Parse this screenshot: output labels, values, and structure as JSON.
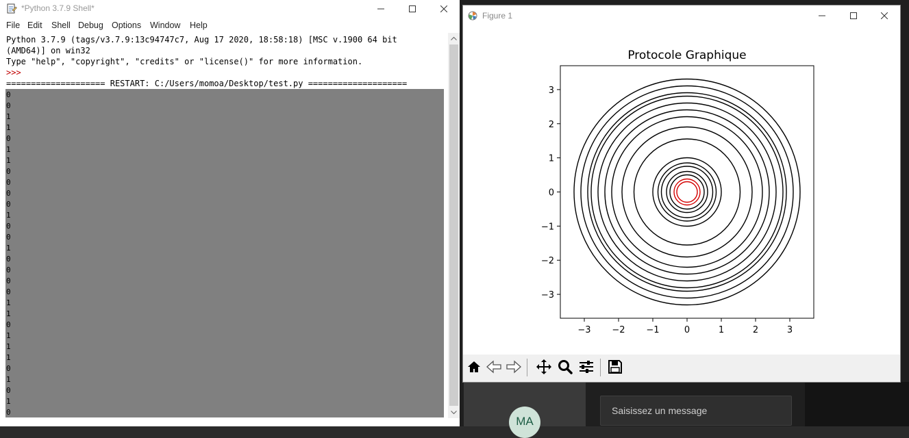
{
  "idle": {
    "title": "*Python 3.7.9 Shell*",
    "menu": [
      "File",
      "Edit",
      "Shell",
      "Debug",
      "Options",
      "Window",
      "Help"
    ],
    "banner_line1": "Python 3.7.9 (tags/v3.7.9:13c94747c7, Aug 17 2020, 18:58:18) [MSC v.1900 64 bit",
    "banner_line2": "(AMD64)] on win32",
    "banner_line3": "Type \"help\", \"copyright\", \"credits\" or \"license()\" for more information.",
    "prompt": ">>>",
    "restart_line": "==================== RESTART: C:/Users/momoa/Desktop/test.py ====================",
    "output_values": [
      "0",
      "0",
      "1",
      "1",
      "0",
      "1",
      "1",
      "0",
      "0",
      "0",
      "0",
      "1",
      "0",
      "0",
      "1",
      "0",
      "0",
      "0",
      "0",
      "1",
      "1",
      "0",
      "1",
      "1",
      "1",
      "0",
      "1",
      "0",
      "1",
      "0"
    ],
    "colors": {
      "prompt": "#c00000",
      "output_bg": "#808080"
    }
  },
  "figure": {
    "window_title": "Figure 1",
    "toolbar_icons": [
      "home-icon",
      "back-icon",
      "forward-icon",
      "pan-icon",
      "zoom-icon",
      "configure-subplots-icon",
      "save-icon"
    ]
  },
  "chart_data": {
    "type": "line",
    "title": "Protocole Graphique",
    "xlabel": "",
    "ylabel": "",
    "xlim": [
      -3.7,
      3.7
    ],
    "ylim": [
      -3.7,
      3.7
    ],
    "xticks": [
      "−3",
      "−2",
      "−1",
      "0",
      "1",
      "2",
      "3"
    ],
    "yticks": [
      "3",
      "2",
      "1",
      "0",
      "−1",
      "−2",
      "−3"
    ],
    "xtick_values": [
      -3,
      -2,
      -1,
      0,
      1,
      2,
      3
    ],
    "ytick_values": [
      3,
      2,
      1,
      0,
      -1,
      -2,
      -3
    ],
    "grid": false,
    "center": [
      0,
      0
    ],
    "series": [
      {
        "color": "#000000",
        "radii": [
          3.3,
          3.1,
          2.9,
          2.8,
          2.6,
          2.4,
          2.2,
          1.9,
          1.55,
          1.0,
          0.85,
          0.75,
          0.6,
          0.5
        ]
      },
      {
        "color": "#d40000",
        "radii": [
          0.38,
          0.3
        ]
      }
    ]
  },
  "chat": {
    "avatar_initials": "MA",
    "input_placeholder": "Saisissez un message"
  }
}
